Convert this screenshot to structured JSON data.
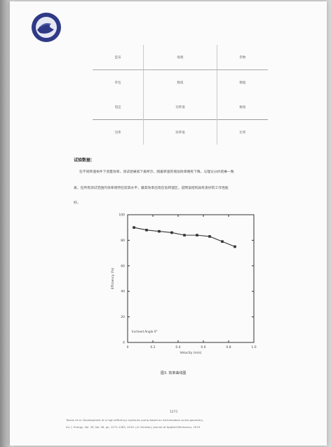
{
  "table": {
    "rows": [
      [
        "型号",
        "规格",
        "参数"
      ],
      [
        "单位",
        "数值",
        "数据"
      ],
      [
        "电压",
        "功率值",
        "数值"
      ],
      [
        "功率",
        "效率值",
        "比率"
      ]
    ]
  },
  "section": {
    "title": "试验数据：",
    "para_lines": [
      "在不同转速条件下测量效率，测试结果如下表所示，随着转速的增加效率略有下降，与理论分析结果一致",
      "表，在所有测试范围内效率保持在较高水平，最高效率出现在低转速区，说明该结构具有良好的工作性能",
      "好。"
    ]
  },
  "chart_data": {
    "type": "line",
    "title": "",
    "xlabel": "Velocity (m/s)",
    "ylabel": "Efficiency (%)",
    "xlim": [
      0,
      1.0
    ],
    "ylim": [
      0,
      100
    ],
    "xticks": [
      "0",
      "0.2",
      "0.4",
      "0.6",
      "0.8",
      "1.0"
    ],
    "yticks": [
      "0",
      "20",
      "40",
      "60",
      "80",
      "100"
    ],
    "grid": false,
    "annotation": "Inclined Angle 0°",
    "series": [
      {
        "x": [
          0.05,
          0.15,
          0.25,
          0.35,
          0.45,
          0.55,
          0.65,
          0.75,
          0.85
        ],
        "y": [
          90,
          88,
          87,
          86,
          84,
          84,
          83,
          79,
          75
        ]
      }
    ]
  },
  "figure_caption": "图3. 效率曲线图",
  "footer": {
    "page_number": "1271",
    "line1": "Toulon et al. Development of a high-efficiency hydraulic pump based on Archimedean screw geometry,",
    "line2": "Int. J. Energy, Vol. 39, No. 06, pp. 1271-1283, 2019. (in Chinese), Journal of Applied Mechanics, 2019"
  }
}
